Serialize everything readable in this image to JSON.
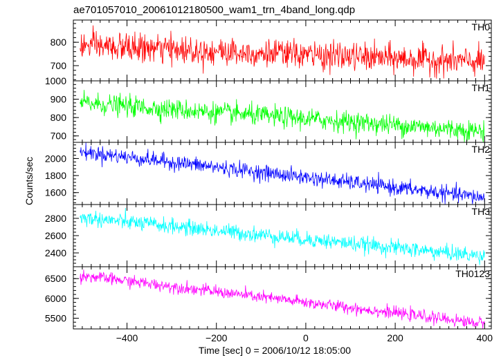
{
  "title": "ae701057010_20061012180500_wam1_trn_4band_long.qdp",
  "colors": {
    "TH0": "#ff0000",
    "TH1": "#00ff00",
    "TH2": "#0000ff",
    "TH3": "#00ffff",
    "TH0123": "#ff00ff",
    "axes": "#000000"
  },
  "chart_data": {
    "type": "line",
    "title": "ae701057010_20061012180500_wam1_trn_4band_long.qdp",
    "xlabel": "Time [sec] 0 = 2006/10/12 18:05:00",
    "ylabel": "Counts/sec",
    "xlim": [
      -520,
      415
    ],
    "x_start": -505,
    "x_end": 400,
    "x_ticks": [
      -400,
      -200,
      0,
      200,
      400
    ],
    "x_tick_labels": [
      "−400",
      "−200",
      "0",
      "200",
      "400"
    ],
    "series": [
      {
        "name": "TH0",
        "color": "#ff0000",
        "ylim": [
          635,
          895
        ],
        "y_ticks": [
          700,
          800
        ],
        "y_tick_labels": [
          "700",
          "800"
        ],
        "trend_start": 785,
        "trend_end": 715,
        "noise": 30
      },
      {
        "name": "TH1",
        "color": "#00ff00",
        "ylim": [
          665,
          1000
        ],
        "y_ticks": [
          700,
          800,
          900,
          1000
        ],
        "y_tick_labels": [
          "700",
          "800",
          "900",
          "1000"
        ],
        "trend_start": 880,
        "trend_end": 725,
        "noise": 28
      },
      {
        "name": "TH2",
        "color": "#0000ff",
        "ylim": [
          1460,
          2190
        ],
        "y_ticks": [
          1600,
          1800,
          2000
        ],
        "y_tick_labels": [
          "1600",
          "1800",
          "2000"
        ],
        "trend_start": 2080,
        "trend_end": 1540,
        "noise": 45
      },
      {
        "name": "TH3",
        "color": "#00ffff",
        "ylim": [
          2240,
          2960
        ],
        "y_ticks": [
          2400,
          2600,
          2800
        ],
        "y_tick_labels": [
          "2400",
          "2600",
          "2800"
        ],
        "trend_start": 2810,
        "trend_end": 2360,
        "noise": 45
      },
      {
        "name": "TH0123",
        "color": "#ff00ff",
        "ylim": [
          5230,
          6800
        ],
        "y_ticks": [
          5500,
          6000,
          6500
        ],
        "y_tick_labels": [
          "5500",
          "6000",
          "6500"
        ],
        "trend_start": 6580,
        "trend_end": 5360,
        "noise": 75
      }
    ]
  }
}
